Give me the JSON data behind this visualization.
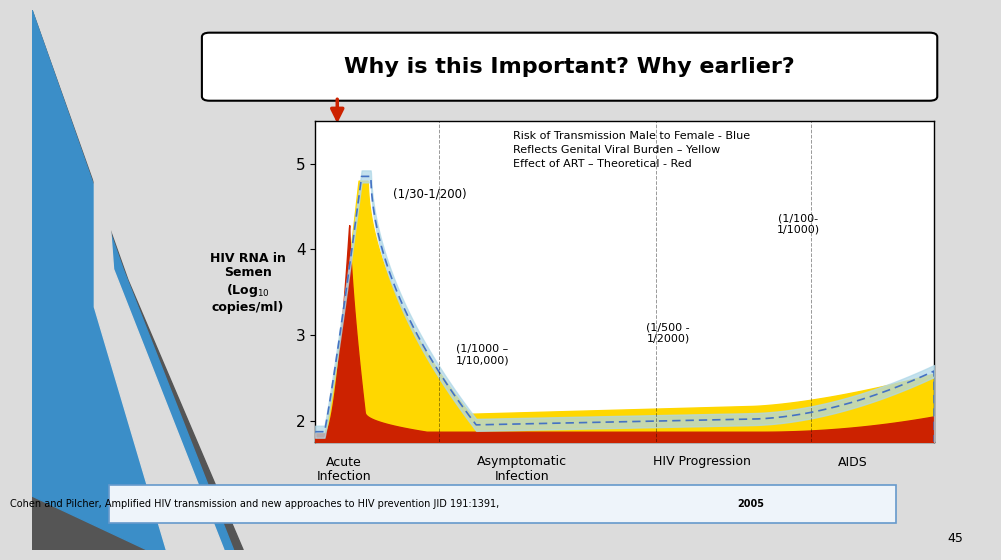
{
  "title": "Why is this Important? Why earlier?",
  "yticks": [
    2,
    3,
    4,
    5
  ],
  "xlim": [
    0,
    100
  ],
  "ylim": [
    1.75,
    5.5
  ],
  "annotation1": "(1/30-1/200)",
  "annotation2": "(1/1000 –\n1/10,000)",
  "annotation3": "(1/500 -\n1/2000)",
  "annotation4": "(1/100-\n1/1000)",
  "legend_text": "Risk of Transmission Male to Female - Blue\nReflects Genital Viral Burden – Yellow\nEffect of ART – Theoretical - Red",
  "xlabels": [
    "Acute\nInfection",
    "Asymptomatic\nInfection",
    "HIV Progression",
    "AIDS"
  ],
  "citation": "Cohen and Pilcher, Amplified HIV transmission and new approaches to HIV prevention JID 191:1391, 2005",
  "slide_number": "45",
  "bg_light": "#dcdcdc",
  "bg_dark": "#b8b8b8",
  "blue_stripe": "#3b8ec8",
  "dark_stripe": "#555555",
  "chart_border": "#000000",
  "yellow_color": "#FFD700",
  "red_color": "#CC2200",
  "blue_line_color": "#4472C4",
  "blue_band_color": "#B0D8E8"
}
